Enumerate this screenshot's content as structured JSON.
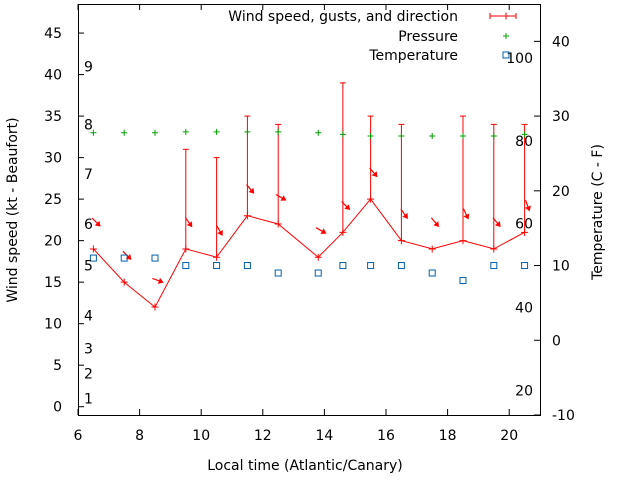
{
  "chart_data": {
    "type": "line",
    "title": "",
    "xlabel": "Local time (Atlantic/Canary)",
    "ylabel": "Wind speed (kt - Beaufort)",
    "y2label": "Temperature (C - F)",
    "xlim": [
      6,
      21
    ],
    "ylim": [
      -1,
      48.5
    ],
    "y2lim": [
      -10,
      45
    ],
    "xticks": [
      "6",
      "8",
      "10",
      "12",
      "14",
      "16",
      "18",
      "20"
    ],
    "yticks": [
      "0",
      "5",
      "10",
      "15",
      "20",
      "25",
      "30",
      "35",
      "40",
      "45"
    ],
    "y2ticks": [
      "-10",
      "0",
      "10",
      "20",
      "30",
      "40"
    ],
    "beaufort_labels": [
      {
        "label": "1",
        "kt": 1
      },
      {
        "label": "2",
        "kt": 4
      },
      {
        "label": "3",
        "kt": 7
      },
      {
        "label": "4",
        "kt": 11
      },
      {
        "label": "5",
        "kt": 17
      },
      {
        "label": "6",
        "kt": 22
      },
      {
        "label": "7",
        "kt": 28
      },
      {
        "label": "8",
        "kt": 34
      },
      {
        "label": "9",
        "kt": 41
      }
    ],
    "fahrenheit_labels": [
      {
        "label": "20",
        "celsius": -6.7
      },
      {
        "label": "40",
        "celsius": 4.4
      },
      {
        "label": "60",
        "celsius": 15.6
      },
      {
        "label": "80",
        "celsius": 26.7
      },
      {
        "label": "100",
        "celsius": 37.8
      }
    ],
    "legend": [
      {
        "name": "Wind speed, gusts, and direction",
        "symbol": "line-plus",
        "color": "#ff0000"
      },
      {
        "name": "Pressure",
        "symbol": "plus",
        "color": "#00a000"
      },
      {
        "name": "Temperature",
        "symbol": "square",
        "color": "#0060ad"
      }
    ],
    "series": [
      {
        "name": "Wind speed, gusts, and direction",
        "color": "#ff0000",
        "points": [
          {
            "x": 6.5,
            "speed": 19,
            "gust": null,
            "dir_deg": 315
          },
          {
            "x": 7.5,
            "speed": 15,
            "gust": null,
            "dir_deg": 315
          },
          {
            "x": 8.5,
            "speed": 12,
            "gust": null,
            "dir_deg": 290
          },
          {
            "x": 9.5,
            "speed": 19,
            "gust": 31,
            "dir_deg": 325
          },
          {
            "x": 10.5,
            "speed": 18,
            "gust": 30,
            "dir_deg": 330
          },
          {
            "x": 11.5,
            "speed": 23,
            "gust": 35,
            "dir_deg": 320
          },
          {
            "x": 12.5,
            "speed": 22,
            "gust": 34,
            "dir_deg": 300
          },
          {
            "x": 13.8,
            "speed": 18,
            "gust": null,
            "dir_deg": 300
          },
          {
            "x": 14.6,
            "speed": 21,
            "gust": 39,
            "dir_deg": 315
          },
          {
            "x": 15.5,
            "speed": 25,
            "gust": 35,
            "dir_deg": 320
          },
          {
            "x": 16.5,
            "speed": 20,
            "gust": 34,
            "dir_deg": 325
          },
          {
            "x": 17.5,
            "speed": 19,
            "gust": null,
            "dir_deg": 320
          },
          {
            "x": 18.5,
            "speed": 20,
            "gust": 35,
            "dir_deg": 335
          },
          {
            "x": 19.5,
            "speed": 19,
            "gust": 34,
            "dir_deg": 320
          },
          {
            "x": 20.5,
            "speed": 21,
            "gust": 34,
            "dir_deg": 340
          }
        ]
      },
      {
        "name": "Pressure",
        "color": "#00a000",
        "axis": "left",
        "x": [
          6.5,
          7.5,
          8.5,
          9.5,
          10.5,
          11.5,
          12.5,
          13.8,
          14.6,
          15.5,
          16.5,
          17.5,
          18.5,
          19.5,
          20.5
        ],
        "values": [
          33,
          33,
          33,
          33.1,
          33.1,
          33.1,
          33.1,
          33,
          32.8,
          32.6,
          32.6,
          32.6,
          32.6,
          32.6,
          32.8
        ]
      },
      {
        "name": "Temperature",
        "color": "#0060ad",
        "axis": "right",
        "x": [
          6.5,
          7.5,
          8.5,
          9.5,
          10.5,
          11.5,
          12.5,
          13.8,
          14.6,
          15.5,
          16.5,
          17.5,
          18.5,
          19.5,
          20.5
        ],
        "values": [
          11,
          11,
          11,
          10,
          10,
          10,
          9,
          9,
          10,
          10,
          10,
          9,
          8,
          10,
          10
        ]
      }
    ]
  }
}
